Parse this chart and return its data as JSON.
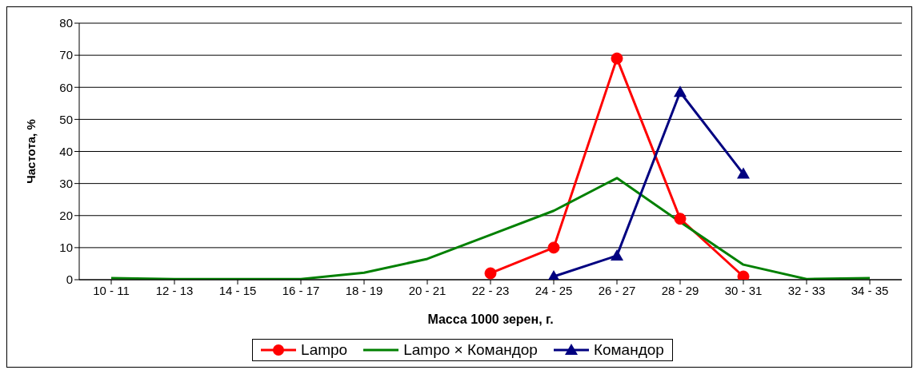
{
  "chart_data": {
    "type": "line",
    "xlabel": "Масса 1000 зерен, г.",
    "ylabel": "Частота, %",
    "categories": [
      "10 - 11",
      "12 - 13",
      "14 - 15",
      "16 - 17",
      "18 - 19",
      "20 - 21",
      "22 - 23",
      "24 - 25",
      "26 - 27",
      "28 - 29",
      "30 - 31",
      "32 - 33",
      "34 - 35"
    ],
    "series": [
      {
        "name": "Lampo",
        "color": "#ff0000",
        "marker": "circle",
        "values": [
          null,
          null,
          null,
          null,
          null,
          null,
          2,
          10,
          69,
          19,
          1,
          null,
          null
        ]
      },
      {
        "name": "Lampo × Командор",
        "color": "#008000",
        "marker": "none",
        "values": [
          0.5,
          0.2,
          0.2,
          0.2,
          2.2,
          6.5,
          14,
          21.5,
          31.7,
          18,
          4.7,
          0.2,
          0.5
        ]
      },
      {
        "name": "Командор",
        "color": "#000080",
        "marker": "triangle",
        "values": [
          null,
          null,
          null,
          null,
          null,
          null,
          null,
          1,
          7.5,
          58.5,
          33,
          null,
          null
        ]
      }
    ],
    "ylim": [
      0,
      80
    ],
    "yticks": [
      0,
      10,
      20,
      30,
      40,
      50,
      60,
      70,
      80
    ],
    "grid": "y",
    "legend": "bottom"
  }
}
